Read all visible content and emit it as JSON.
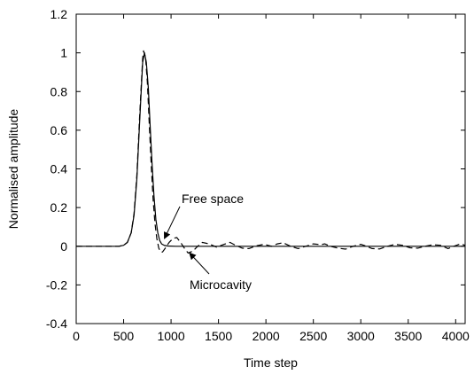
{
  "chart_data": {
    "type": "line",
    "title": "",
    "xlabel": "Time step",
    "ylabel": "Normalised amplitude",
    "xlim": [
      0,
      4100
    ],
    "ylim": [
      -0.4,
      1.2
    ],
    "xticks": [
      0,
      500,
      1000,
      1500,
      2000,
      2500,
      3000,
      3500,
      4000
    ],
    "yticks": [
      -0.4,
      -0.2,
      0,
      0.2,
      0.4,
      0.6,
      0.8,
      1,
      1.2
    ],
    "xtick_labels": [
      "0",
      "500",
      "1000",
      "1500",
      "2000",
      "2500",
      "3000",
      "3500",
      "4000"
    ],
    "ytick_labels": [
      "-0.4",
      "-0.2",
      "0",
      "0.2",
      "0.4",
      "0.6",
      "0.8",
      "1",
      "1.2"
    ],
    "grid": false,
    "series": [
      {
        "name": "Free space",
        "style": "solid",
        "color": "#000000",
        "x": [
          0,
          450,
          500,
          540,
          580,
          610,
          640,
          670,
          700,
          720,
          740,
          760,
          780,
          800,
          820,
          840,
          860,
          880,
          900,
          930,
          970,
          1050,
          1200,
          1600,
          2000,
          2500,
          3000,
          3500,
          4000,
          4100
        ],
        "y": [
          0,
          0,
          0.005,
          0.02,
          0.07,
          0.16,
          0.35,
          0.65,
          0.95,
          1.0,
          0.95,
          0.82,
          0.62,
          0.42,
          0.26,
          0.14,
          0.07,
          0.03,
          0.012,
          0.004,
          0.001,
          0,
          0,
          0,
          0,
          0,
          0,
          0,
          0,
          0
        ]
      },
      {
        "name": "Microcavity",
        "style": "dashed",
        "color": "#000000",
        "x": [
          0,
          450,
          500,
          540,
          580,
          610,
          640,
          670,
          700,
          710,
          730,
          750,
          770,
          790,
          810,
          830,
          850,
          870,
          890,
          910,
          940,
          980,
          1020,
          1060,
          1100,
          1140,
          1180,
          1230,
          1280,
          1330,
          1400,
          1480,
          1560,
          1620,
          1680,
          1750,
          1820,
          1900,
          1980,
          2060,
          2120,
          2180,
          2260,
          2340,
          2420,
          2500,
          2580,
          2620,
          2680,
          2760,
          2840,
          2920,
          3000,
          3060,
          3120,
          3200,
          3280,
          3360,
          3440,
          3520,
          3600,
          3680,
          3760,
          3840,
          3920,
          3980,
          4050,
          4100
        ],
        "y": [
          0,
          0,
          0.005,
          0.02,
          0.07,
          0.17,
          0.37,
          0.68,
          0.97,
          1.01,
          0.98,
          0.85,
          0.64,
          0.43,
          0.25,
          0.12,
          0.04,
          -0.01,
          -0.03,
          -0.03,
          -0.01,
          0.02,
          0.04,
          0.045,
          0.02,
          -0.01,
          -0.035,
          -0.025,
          0.0,
          0.02,
          0.012,
          -0.005,
          0.01,
          0.02,
          0.005,
          -0.01,
          -0.012,
          0.002,
          0.01,
          0.0,
          0.012,
          0.018,
          0.0,
          -0.012,
          0.0,
          0.012,
          0.008,
          0.012,
          0.0,
          -0.01,
          -0.015,
          0.0,
          0.01,
          0.0,
          -0.012,
          -0.014,
          0.0,
          0.01,
          0.005,
          -0.008,
          -0.01,
          0.0,
          0.008,
          0.005,
          -0.012,
          0.0,
          0.012,
          0.005
        ]
      }
    ],
    "annotations": [
      {
        "id": "free-space",
        "text": "Free space",
        "x": 930,
        "y": 0.04
      },
      {
        "id": "microcavity",
        "text": "Microcavity",
        "x": 1195,
        "y": -0.035
      }
    ]
  }
}
